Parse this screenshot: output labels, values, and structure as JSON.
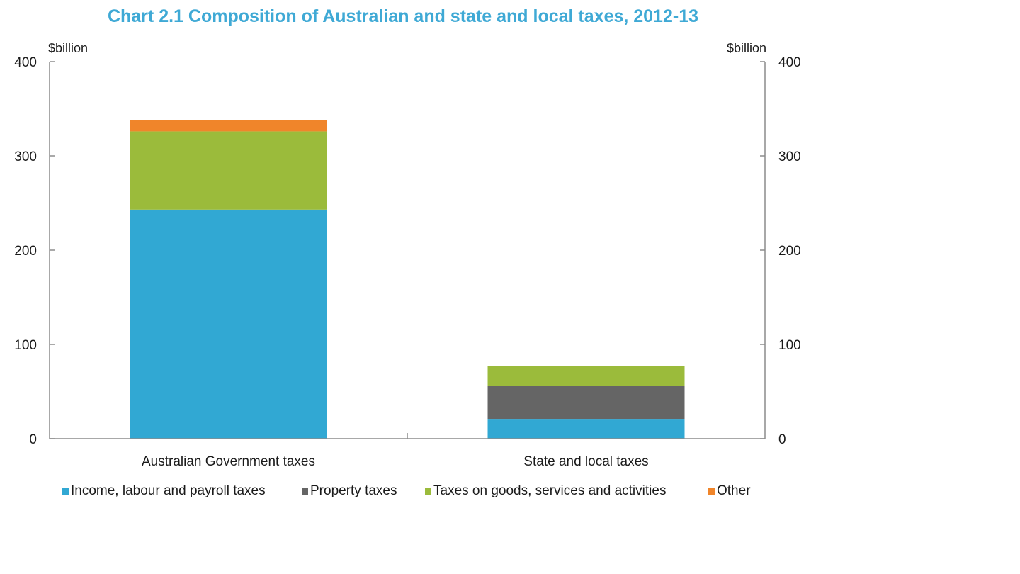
{
  "chart_data": {
    "type": "bar",
    "stacked": true,
    "title": "Chart 2.1 Composition of Australian and state and local taxes, 2012-13",
    "ylabel_left": "$billion",
    "ylabel_right": "$billion",
    "xlabel": "",
    "ylim": [
      0,
      400
    ],
    "yticks": [
      0,
      100,
      200,
      300,
      400
    ],
    "categories": [
      "Australian Government taxes",
      "State and local taxes"
    ],
    "series": [
      {
        "name": "Income, labour and payroll taxes",
        "values": [
          243,
          21
        ],
        "color": "#31a8d3"
      },
      {
        "name": "Property taxes",
        "values": [
          0,
          35
        ],
        "color": "#656565"
      },
      {
        "name": "Taxes on goods, services and activities",
        "values": [
          83,
          21
        ],
        "color": "#9bbb3b"
      },
      {
        "name": "Other",
        "values": [
          12,
          0
        ],
        "color": "#f0852a"
      }
    ],
    "legend_position": "bottom",
    "grid": false
  }
}
